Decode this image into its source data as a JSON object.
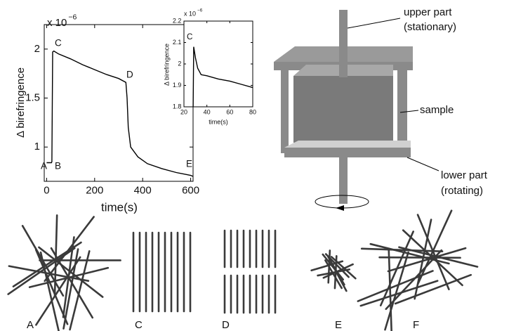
{
  "chart_data": [
    {
      "type": "line",
      "x": [
        0,
        20,
        22,
        25,
        30,
        50,
        100,
        150,
        200,
        250,
        300,
        330,
        335,
        340,
        350,
        380,
        420,
        480,
        540,
        600,
        610
      ],
      "values": [
        0.84,
        0.84,
        0.85,
        1.97,
        1.98,
        1.95,
        1.9,
        1.84,
        1.79,
        1.74,
        1.7,
        1.66,
        1.5,
        1.2,
        1.0,
        0.9,
        0.83,
        0.78,
        0.74,
        0.71,
        0.7
      ],
      "color": "#000000",
      "xlim": [
        -10,
        610
      ],
      "ylim": [
        0.65,
        2.25
      ],
      "xticks": [
        0,
        200,
        400,
        600
      ],
      "yticks": [
        1,
        1.5,
        2
      ],
      "x_label": "time(s)",
      "y_label": "Δ birefringence",
      "y_multiplier": "x 10",
      "y_multiplier_power": "−6",
      "annotations": [
        "A",
        "B",
        "C",
        "D",
        "E"
      ]
    },
    {
      "type": "line",
      "x": [
        28,
        28.5,
        30,
        32,
        35,
        40,
        50,
        60,
        70,
        80
      ],
      "values": [
        1.8,
        2.08,
        2.03,
        1.98,
        1.95,
        1.945,
        1.93,
        1.92,
        1.905,
        1.89
      ],
      "color": "#000000",
      "xlim": [
        20,
        80
      ],
      "ylim": [
        1.8,
        2.2
      ],
      "xticks": [
        20,
        40,
        60,
        80
      ],
      "yticks": [
        1.8,
        1.9,
        2,
        2.1,
        2.2
      ],
      "x_label": "time(s)",
      "y_label": "Δ birefringence",
      "y_multiplier": "x 10",
      "y_multiplier_power": "−6",
      "annotations": [
        "C"
      ]
    }
  ],
  "diagram": {
    "labels": [
      "upper part",
      "(stationary)",
      "sample",
      "lower part",
      "(rotating)"
    ]
  },
  "panels": [
    "A",
    "C",
    "D",
    "E",
    "F"
  ]
}
